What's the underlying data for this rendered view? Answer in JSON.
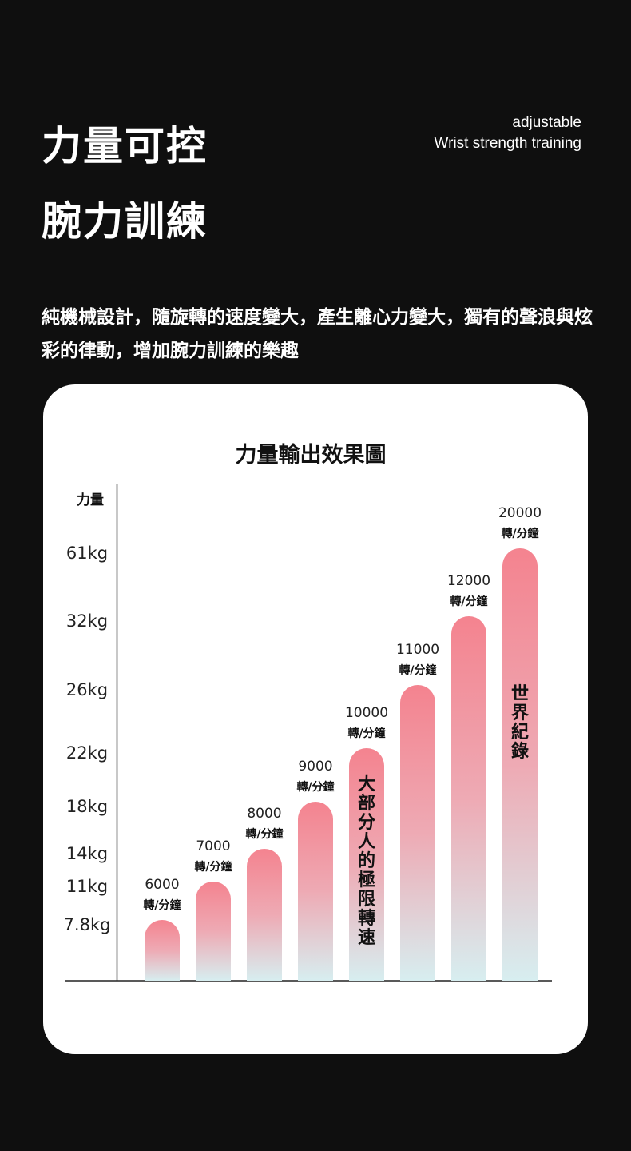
{
  "headline": {
    "line1": "力量可控",
    "line2": "腕力訓練"
  },
  "tagline": {
    "line1": "adjustable",
    "line2": "Wrist strength training"
  },
  "description": "純機械設計，隨旋轉的速度變大，產生離心力變大，獨有的聲浪與炫彩的律動，增加腕力訓練的樂趣",
  "colors": {
    "background": "#0f0f0f",
    "card": "#ffffff",
    "bar_top": "#f4838f",
    "bar_bottom": "#d7eef0"
  },
  "chart_data": {
    "type": "bar",
    "title": "力量輸出效果圖",
    "ylabel": "力量",
    "unit": "轉/分鐘",
    "ytick_labels": [
      "7.8kg",
      "11kg",
      "14kg",
      "18kg",
      "22kg",
      "26kg",
      "32kg",
      "61kg"
    ],
    "categories": [
      "6000",
      "7000",
      "8000",
      "9000",
      "10000",
      "11000",
      "12000",
      "20000"
    ],
    "values": [
      7.8,
      11,
      14,
      18,
      22,
      26,
      32,
      61
    ],
    "annotations": [
      {
        "category": "10000",
        "text": "大部分人的極限轉速"
      },
      {
        "category": "20000",
        "text": "世界紀錄"
      }
    ],
    "grid": false,
    "legend": "none"
  }
}
